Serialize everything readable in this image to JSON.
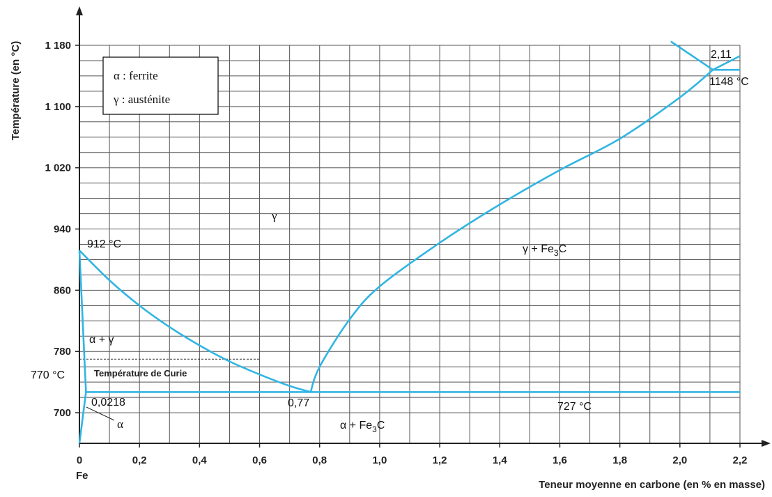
{
  "chart_data": {
    "type": "line",
    "title": "",
    "xlabel": "Teneur moyenne en carbone (en % en masse)",
    "ylabel": "Température (en °C)",
    "xlim": [
      0,
      2.2
    ],
    "ylim": [
      660,
      1190
    ],
    "grid": true,
    "x_ticks": [
      "0",
      "0,2",
      "0,4",
      "0,6",
      "0,8",
      "1,0",
      "1,2",
      "1,4",
      "1,6",
      "1,8",
      "2,0",
      "2,2"
    ],
    "x_tick_values": [
      0,
      0.2,
      0.4,
      0.6,
      0.8,
      1.0,
      1.2,
      1.4,
      1.6,
      1.8,
      2.0,
      2.2
    ],
    "y_ticks": [
      "700",
      "780",
      "860",
      "940",
      "1 020",
      "1 100",
      "1 180"
    ],
    "y_tick_values": [
      700,
      780,
      860,
      940,
      1020,
      1100,
      1180
    ],
    "x_origin_label": "Fe",
    "legend": {
      "placement": "top-left",
      "entries": [
        "α : ferrite",
        "γ : austénite"
      ]
    },
    "series": [
      {
        "x": [
          0,
          0.0218
        ],
        "y": [
          912,
          727
        ]
      },
      {
        "x": [
          0,
          0.0218
        ],
        "y": [
          660,
          727
        ]
      },
      {
        "x": [
          0,
          0.1,
          0.2,
          0.3,
          0.4,
          0.5,
          0.6,
          0.7,
          0.77
        ],
        "y": [
          912,
          873,
          840,
          812,
          788,
          767,
          750,
          735,
          727
        ]
      },
      {
        "x": [
          0.77,
          0.8,
          0.9,
          1.0,
          1.2,
          1.4,
          1.6,
          1.8,
          2.0,
          2.11
        ],
        "y": [
          727,
          760,
          822,
          865,
          922,
          972,
          1017,
          1058,
          1112,
          1148
        ]
      },
      {
        "x": [
          0.0218,
          2.2
        ],
        "y": [
          727,
          727
        ]
      },
      {
        "x": [
          2.11,
          2.2
        ],
        "y": [
          1148,
          1148
        ]
      },
      {
        "x": [
          1.97,
          2.11
        ],
        "y": [
          1185,
          1148
        ]
      },
      {
        "x": [
          2.11,
          2.2
        ],
        "y": [
          1148,
          1166
        ]
      }
    ],
    "annotations": {
      "gamma": "γ",
      "gamma_fe3c": "γ + Fe3C",
      "alpha_gamma": "α + γ",
      "alpha": "α",
      "alpha_fe3c": "α + Fe3C",
      "t912": "912 °C",
      "t770": "770 °C",
      "curie": "Température de Curie",
      "c0218": "0,0218",
      "c077": "0,77",
      "t727": "727 °C",
      "c211": "2,11",
      "t1148": "1148 °C"
    },
    "curie_temperature": 770
  },
  "colors": {
    "curve": "#30b5e3",
    "grid": "#555555",
    "axis": "#222222"
  }
}
